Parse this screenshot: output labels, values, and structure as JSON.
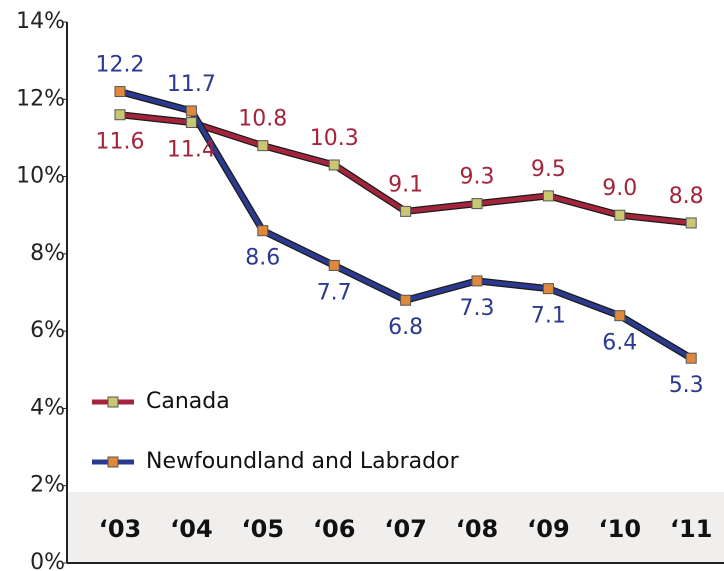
{
  "chart_data": {
    "type": "line",
    "categories": [
      "‘03",
      "‘04",
      "‘05",
      "‘06",
      "‘07",
      "‘08",
      "‘09",
      "‘10",
      "‘11"
    ],
    "series": [
      {
        "name": "Canada",
        "color": "#a3243b",
        "marker_color": "#c9c771",
        "values": [
          11.6,
          11.4,
          10.8,
          10.3,
          9.1,
          9.3,
          9.5,
          9.0,
          8.8
        ],
        "value_labels": [
          "11.6",
          "11.4",
          "10.8",
          "10.3",
          "9.1",
          "9.3",
          "9.5",
          "9.0",
          "8.8"
        ]
      },
      {
        "name": "Newfoundland and Labrador",
        "color": "#2b3a8f",
        "marker_color": "#e0893c",
        "values": [
          12.2,
          11.7,
          8.6,
          7.7,
          6.8,
          7.3,
          7.1,
          6.4,
          5.3
        ]
      }
    ],
    "ylim": [
      0,
      14
    ],
    "yticks": [
      {
        "value": 0,
        "label": "0%"
      },
      {
        "value": 2,
        "label": "2%"
      },
      {
        "value": 4,
        "label": "4%"
      },
      {
        "value": 6,
        "label": "6%"
      },
      {
        "value": 8,
        "label": "8%"
      },
      {
        "value": 10,
        "label": "10%"
      },
      {
        "value": 12,
        "label": "12%"
      },
      {
        "value": 14,
        "label": "14%"
      }
    ],
    "grid": false,
    "legend": "lower left"
  }
}
